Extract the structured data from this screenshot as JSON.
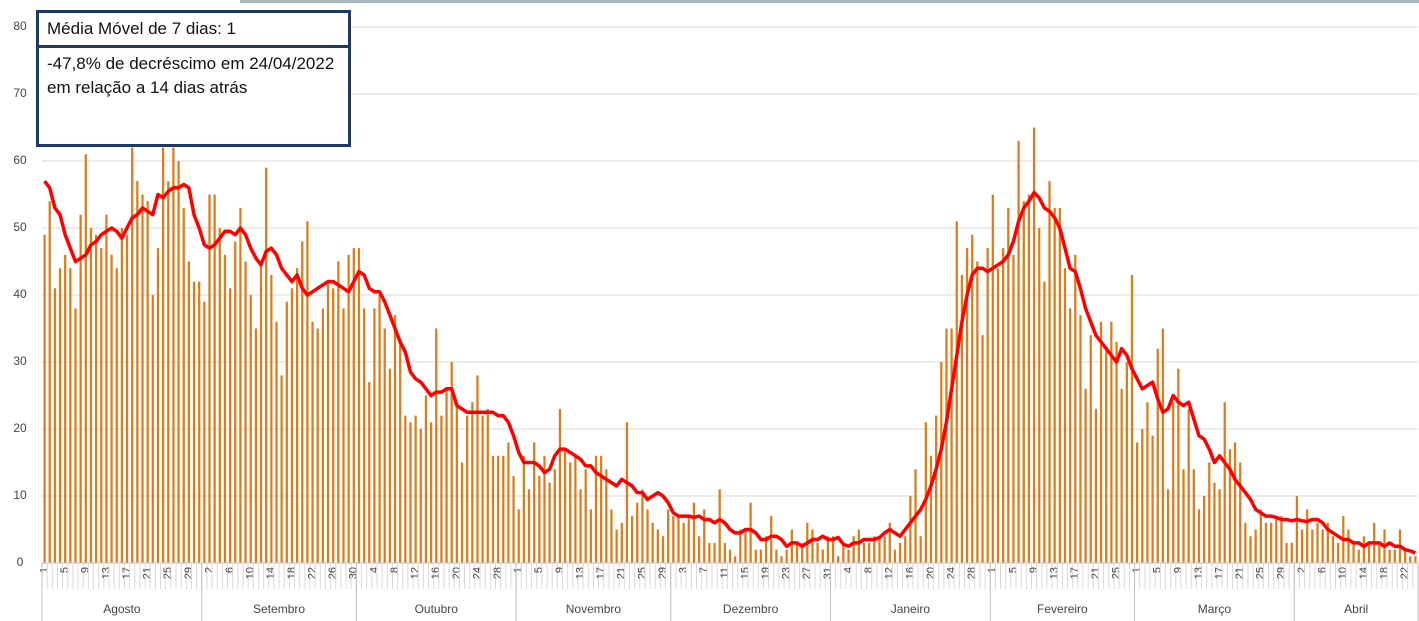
{
  "chart_data": {
    "type": "bar",
    "annotations": [
      "Média Móvel de 7 dias: 1",
      "-47,8% de decréscimo em 24/04/2022  em relação a 14 dias atrás"
    ],
    "months": [
      "Agosto",
      "Setembro",
      "Outubro",
      "Novembro",
      "Dezembro",
      "Janeiro",
      "Fevereiro",
      "Março",
      "Abril"
    ],
    "categories": [
      "1",
      null,
      null,
      null,
      "5",
      null,
      null,
      null,
      "9",
      null,
      null,
      null,
      "13",
      null,
      null,
      null,
      "17",
      null,
      null,
      null,
      "21",
      null,
      null,
      null,
      "25",
      null,
      null,
      null,
      "29",
      null,
      null,
      null,
      "2",
      null,
      null,
      null,
      "6",
      null,
      null,
      null,
      "10",
      null,
      null,
      null,
      "14",
      null,
      null,
      null,
      "18",
      null,
      null,
      null,
      "22",
      null,
      null,
      null,
      "26",
      null,
      null,
      null,
      "30",
      null,
      null,
      null,
      "4",
      null,
      null,
      null,
      "8",
      null,
      null,
      null,
      "12",
      null,
      null,
      null,
      "16",
      null,
      null,
      null,
      "20",
      null,
      null,
      null,
      "24",
      null,
      null,
      null,
      "28",
      null,
      null,
      null,
      "1",
      null,
      null,
      null,
      "5",
      null,
      null,
      null,
      "9",
      null,
      null,
      null,
      "13",
      null,
      null,
      null,
      "17",
      null,
      null,
      null,
      "21",
      null,
      null,
      null,
      "25",
      null,
      null,
      null,
      "29",
      null,
      null,
      null,
      "3",
      null,
      null,
      null,
      "7",
      null,
      null,
      null,
      "11",
      null,
      null,
      null,
      "15",
      null,
      null,
      null,
      "19",
      null,
      null,
      null,
      "23",
      null,
      null,
      null,
      "27",
      null,
      null,
      null,
      "31",
      null,
      null,
      null,
      "4",
      null,
      null,
      null,
      "8",
      null,
      null,
      null,
      "12",
      null,
      null,
      null,
      "16",
      null,
      null,
      null,
      "20",
      null,
      null,
      null,
      "24",
      null,
      null,
      null,
      "28",
      null,
      null,
      null,
      "1",
      null,
      null,
      null,
      "5",
      null,
      null,
      null,
      "9",
      null,
      null,
      null,
      "13",
      null,
      null,
      null,
      "17",
      null,
      null,
      null,
      "21",
      null,
      null,
      null,
      "25",
      null,
      null,
      null,
      "1",
      null,
      null,
      null,
      "5",
      null,
      null,
      null,
      "9",
      null,
      null,
      null,
      "13",
      null,
      null,
      null,
      "17",
      null,
      null,
      null,
      "21",
      null,
      null,
      null,
      "25",
      null,
      null,
      null,
      "29",
      null,
      null,
      null,
      "2",
      null,
      null,
      null,
      "6",
      null,
      null,
      null,
      "10",
      null,
      null,
      null,
      "14",
      null,
      null,
      null,
      "18",
      null,
      null,
      null,
      "22",
      null,
      null
    ],
    "series": [
      {
        "type": "bar",
        "color": "#e07b1a",
        "values": [
          49,
          54,
          41,
          44,
          46,
          44,
          38,
          52,
          61,
          50,
          49,
          47,
          52,
          46,
          44,
          50,
          49,
          62,
          57,
          55,
          54,
          40,
          47,
          62,
          57,
          62,
          60,
          53,
          45,
          42,
          42,
          39,
          55,
          55,
          50,
          46,
          41,
          48,
          53,
          45,
          40,
          35,
          45,
          59,
          43,
          36,
          28,
          39,
          41,
          44,
          48,
          51,
          36,
          35,
          38,
          42,
          41,
          45,
          38,
          46,
          47,
          47,
          38,
          27,
          38,
          40,
          35,
          29,
          37,
          33,
          22,
          21,
          22,
          20,
          25,
          21,
          35,
          22,
          26,
          30,
          24,
          15,
          22,
          24,
          28,
          22,
          23,
          16,
          16,
          16,
          18,
          13,
          8,
          16,
          11,
          18,
          13,
          16,
          12,
          14,
          23,
          17,
          15,
          16,
          11,
          14,
          8,
          16,
          16,
          14,
          8,
          5,
          6,
          21,
          7,
          9,
          11,
          8,
          6,
          5,
          4,
          8,
          7,
          7,
          6,
          7,
          9,
          4,
          8,
          3,
          3,
          11,
          3,
          2,
          1,
          5,
          5,
          9,
          2,
          2,
          4,
          7,
          2,
          1,
          2,
          5,
          3,
          3,
          6,
          5,
          3,
          2,
          4,
          4,
          1,
          3,
          2,
          4,
          5,
          3,
          3,
          4,
          4,
          4,
          6,
          2,
          3,
          4,
          10,
          14,
          4,
          21,
          16,
          22,
          30,
          35,
          35,
          51,
          43,
          47,
          49,
          45,
          34,
          47,
          55,
          44,
          47,
          53,
          46,
          63,
          54,
          55,
          65,
          50,
          42,
          57,
          53,
          53,
          44,
          38,
          46,
          37,
          26,
          34,
          23,
          36,
          32,
          36,
          33,
          26,
          30,
          43,
          18,
          20,
          24,
          19,
          32,
          35,
          11,
          24,
          29,
          14,
          23,
          14,
          8,
          10,
          15,
          12,
          11,
          24,
          17,
          18,
          15,
          6,
          4,
          5,
          8,
          6,
          6,
          7,
          7,
          3,
          3,
          10,
          5,
          8,
          5,
          6,
          5,
          6,
          4,
          3,
          7,
          5,
          3,
          2,
          4,
          3,
          6,
          3,
          5,
          2,
          2,
          5,
          2,
          1,
          1
        ]
      },
      {
        "type": "line",
        "color": "#ff0000",
        "values": [
          57,
          56,
          53,
          52,
          49,
          47,
          45,
          45.5,
          46,
          47.5,
          48,
          49,
          49.5,
          50,
          49.5,
          48.5,
          50,
          51.5,
          52,
          53,
          52.5,
          52,
          55,
          54.5,
          55.5,
          56,
          56,
          56.5,
          56,
          52,
          50,
          47.5,
          47,
          47.5,
          48.5,
          49.5,
          49.5,
          49,
          50,
          49,
          47,
          45.5,
          44.5,
          46.5,
          47,
          46,
          44,
          43,
          42,
          43,
          41,
          40,
          40.5,
          41,
          41.5,
          42,
          42,
          41.5,
          41,
          40.5,
          42,
          43.5,
          43,
          41,
          40.5,
          40.5,
          39,
          37,
          35,
          33,
          31.5,
          28.5,
          27.5,
          27,
          26,
          25,
          25.5,
          25.5,
          26,
          26,
          23.5,
          23,
          22.5,
          22.5,
          22.5,
          22.5,
          22.5,
          22.5,
          22,
          22,
          21,
          19,
          16.5,
          15,
          15,
          15,
          14.5,
          13.5,
          14,
          16,
          17,
          17,
          16.5,
          16,
          15.5,
          14.5,
          14.5,
          13.5,
          13,
          12.5,
          12,
          11.5,
          12.5,
          12,
          11.5,
          10.5,
          10.5,
          9.5,
          10,
          10.5,
          10,
          9,
          7.5,
          7,
          7,
          7,
          6.8,
          7,
          6.5,
          6.5,
          6,
          6.5,
          6,
          5,
          4.5,
          4.5,
          5,
          5,
          4.5,
          3.5,
          3.5,
          4,
          4,
          3.5,
          2.5,
          3,
          3,
          2.5,
          3,
          3.5,
          3.5,
          4,
          3.5,
          3.5,
          3.8,
          2.8,
          2.5,
          3,
          3,
          3.5,
          3.5,
          3.5,
          3.8,
          4.5,
          5,
          4.5,
          4,
          5,
          6,
          7,
          8,
          9.5,
          11.5,
          14,
          17,
          21,
          26,
          31,
          36,
          40,
          43,
          44,
          44,
          43.5,
          44,
          44.5,
          45,
          46,
          48,
          51,
          53,
          54,
          55.3,
          54.5,
          53,
          52.5,
          51.5,
          50,
          47,
          44,
          43.5,
          41,
          38,
          36,
          34,
          33,
          32,
          31,
          30,
          32,
          31,
          29,
          27.5,
          26,
          26.5,
          27,
          24.5,
          22.5,
          23,
          25,
          24,
          23.5,
          24,
          21.5,
          19,
          18.5,
          17,
          15,
          16,
          15,
          14,
          12.5,
          11.5,
          10.5,
          9.5,
          8,
          7.5,
          7,
          7,
          6.8,
          6.5,
          6.5,
          6.3,
          6.5,
          6.3,
          6.2,
          6.5,
          6.5,
          6,
          5,
          4.5,
          4,
          3.5,
          3.5,
          3,
          3,
          2.5,
          3,
          3,
          3,
          2.5,
          3,
          2.5,
          2.5,
          2,
          1.8,
          1.5
        ]
      }
    ],
    "ylim": [
      0,
      80
    ],
    "yticks": [
      0,
      10,
      20,
      30,
      40,
      50,
      60,
      70,
      80
    ],
    "grid": true
  }
}
